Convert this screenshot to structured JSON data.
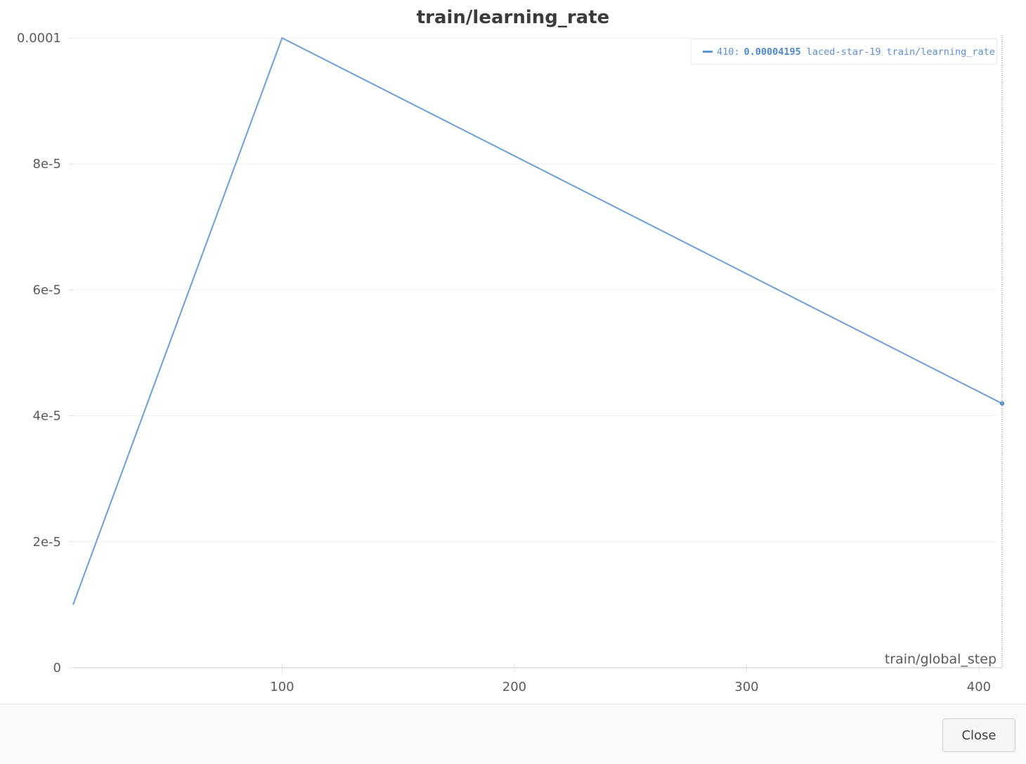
{
  "chart_data": {
    "type": "line",
    "title": "train/learning_rate",
    "xlabel": "train/global_step",
    "ylabel": "",
    "xlim": [
      10,
      410
    ],
    "ylim": [
      0,
      0.0001
    ],
    "x_ticks": [
      100,
      200,
      300,
      400
    ],
    "x_tick_labels": [
      "100",
      "200",
      "300",
      "400"
    ],
    "y_ticks": [
      0,
      2e-05,
      4e-05,
      6e-05,
      8e-05,
      0.0001
    ],
    "y_tick_labels": [
      "0",
      "2e-5",
      "4e-5",
      "6e-5",
      "8e-5",
      "0.0001"
    ],
    "grid": true,
    "legend_position": "top-right",
    "series": [
      {
        "name": "laced-star-19 train/learning_rate",
        "color": "#6a9fdc",
        "x": [
          10,
          100,
          410
        ],
        "values": [
          1e-05,
          0.0001,
          4.195e-05
        ]
      }
    ],
    "hover": {
      "step": "410:",
      "value": "0.00004195",
      "run": "laced-star-19",
      "metric": "train/learning_rate"
    }
  },
  "footer": {
    "close_label": "Close"
  }
}
